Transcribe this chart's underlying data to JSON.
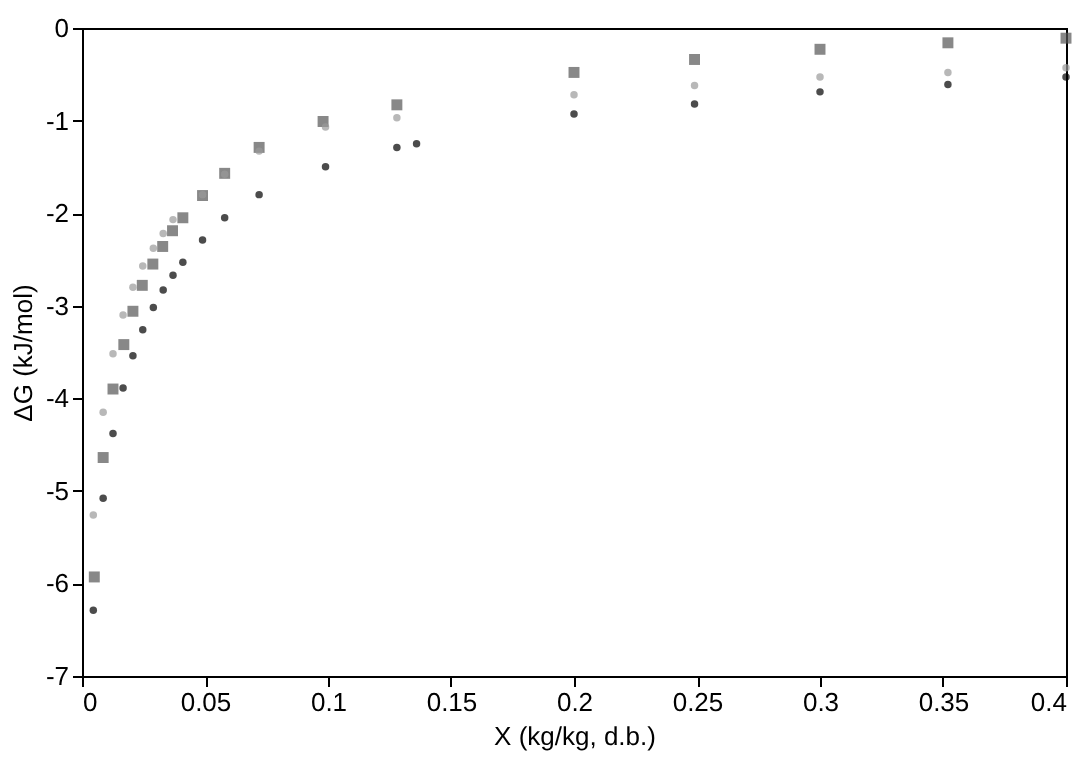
{
  "chart_data": {
    "type": "scatter",
    "xlabel": "X (kg/kg, d.b.)",
    "ylabel": "ΔG (kJ/mol)",
    "xlim": [
      0,
      0.4
    ],
    "ylim": [
      -7,
      0
    ],
    "xticks": [
      0,
      0.05,
      0.1,
      0.15,
      0.2,
      0.25,
      0.3,
      0.35,
      0.4
    ],
    "yticks": [
      -7,
      -6,
      -5,
      -4,
      -3,
      -2,
      -1,
      0
    ],
    "grid": false,
    "series": [
      {
        "color": "#000000",
        "marker": "circle",
        "x": [
          0.0046,
          0.0086,
          0.0126,
          0.0167,
          0.0207,
          0.0247,
          0.029,
          0.033,
          0.037,
          0.041,
          0.049,
          0.058,
          0.072,
          0.099,
          0.128,
          0.136,
          0.2,
          0.249,
          0.3,
          0.352,
          0.4
        ],
        "values": [
          -6.29,
          -5.08,
          -4.38,
          -3.89,
          -3.54,
          -3.26,
          -3.02,
          -2.83,
          -2.67,
          -2.53,
          -2.29,
          -2.05,
          -1.8,
          -1.5,
          -1.29,
          -1.25,
          -0.93,
          -0.82,
          -0.69,
          -0.61,
          -0.53
        ]
      },
      {
        "color": "#9a9a9a",
        "marker": "circle",
        "x": [
          0.0046,
          0.0086,
          0.0126,
          0.0167,
          0.0207,
          0.0247,
          0.029,
          0.033,
          0.037,
          0.049,
          0.058,
          0.072,
          0.099,
          0.128,
          0.2,
          0.249,
          0.3,
          0.352,
          0.4
        ],
        "values": [
          -5.26,
          -4.15,
          -3.52,
          -3.1,
          -2.8,
          -2.57,
          -2.38,
          -2.22,
          -2.07,
          -1.8,
          -1.58,
          -1.33,
          -1.07,
          -0.97,
          -0.72,
          -0.62,
          -0.53,
          -0.48,
          -0.43
        ]
      },
      {
        "color": "#555555",
        "marker": "square",
        "x": [
          0.005,
          0.0086,
          0.0126,
          0.017,
          0.0207,
          0.0245,
          0.0288,
          0.0328,
          0.0368,
          0.041,
          0.049,
          0.058,
          0.072,
          0.098,
          0.128,
          0.2,
          0.249,
          0.3,
          0.352,
          0.4
        ],
        "values": [
          -5.93,
          -4.64,
          -3.9,
          -3.42,
          -3.06,
          -2.78,
          -2.55,
          -2.36,
          -2.19,
          -2.05,
          -1.81,
          -1.57,
          -1.29,
          -1.01,
          -0.83,
          -0.48,
          -0.34,
          -0.23,
          -0.16,
          -0.11
        ]
      }
    ]
  }
}
